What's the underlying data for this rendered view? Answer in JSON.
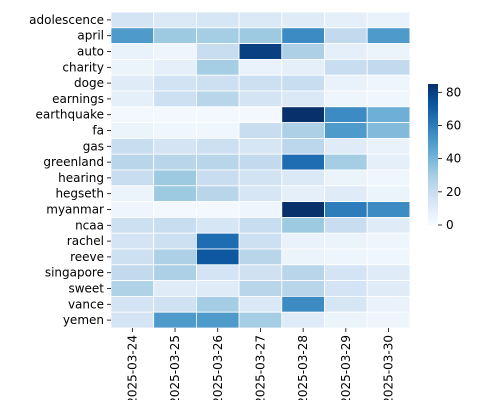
{
  "chart_data": {
    "type": "heatmap",
    "title": "",
    "xlabel": "",
    "ylabel": "",
    "x": [
      "2025-03-24",
      "2025-03-25",
      "2025-03-26",
      "2025-03-27",
      "2025-03-28",
      "2025-03-29",
      "2025-03-30"
    ],
    "y": [
      "adolescence",
      "april",
      "auto",
      "charity",
      "doge",
      "earnings",
      "earthquake",
      "fa",
      "gas",
      "greenland",
      "hearing",
      "hegseth",
      "myanmar",
      "ncaa",
      "rachel",
      "reeve",
      "singapore",
      "sweet",
      "vance",
      "yemen"
    ],
    "values": [
      [
        15,
        12,
        14,
        12,
        10,
        8,
        6
      ],
      [
        50,
        32,
        30,
        32,
        55,
        22,
        50
      ],
      [
        6,
        4,
        20,
        80,
        28,
        8,
        5
      ],
      [
        5,
        8,
        30,
        6,
        8,
        20,
        22
      ],
      [
        10,
        16,
        18,
        18,
        20,
        6,
        4
      ],
      [
        8,
        18,
        25,
        15,
        12,
        4,
        3
      ],
      [
        2,
        2,
        2,
        2,
        85,
        55,
        42
      ],
      [
        5,
        3,
        3,
        20,
        28,
        50,
        38
      ],
      [
        20,
        15,
        18,
        14,
        24,
        10,
        6
      ],
      [
        25,
        25,
        25,
        22,
        65,
        30,
        8
      ],
      [
        20,
        32,
        20,
        16,
        12,
        5,
        3
      ],
      [
        5,
        32,
        25,
        14,
        8,
        10,
        5
      ],
      [
        4,
        2,
        2,
        4,
        85,
        60,
        55
      ],
      [
        18,
        20,
        14,
        20,
        32,
        20,
        10
      ],
      [
        15,
        18,
        65,
        18,
        6,
        5,
        4
      ],
      [
        18,
        28,
        72,
        25,
        5,
        4,
        3
      ],
      [
        22,
        28,
        15,
        17,
        25,
        15,
        10
      ],
      [
        27,
        10,
        10,
        25,
        25,
        15,
        10
      ],
      [
        15,
        17,
        30,
        12,
        55,
        14,
        6
      ],
      [
        15,
        50,
        50,
        30,
        10,
        5,
        4
      ]
    ],
    "colorbar": {
      "min": 0,
      "max": 85,
      "ticks": [
        0,
        20,
        40,
        60,
        80
      ]
    },
    "colormap": [
      "#f7fbff",
      "#deebf7",
      "#c6dbef",
      "#9ecae1",
      "#6baed6",
      "#4292c6",
      "#2171b5",
      "#08519c",
      "#08306b"
    ],
    "gridlines": "white",
    "legend": "colorbar-right"
  }
}
